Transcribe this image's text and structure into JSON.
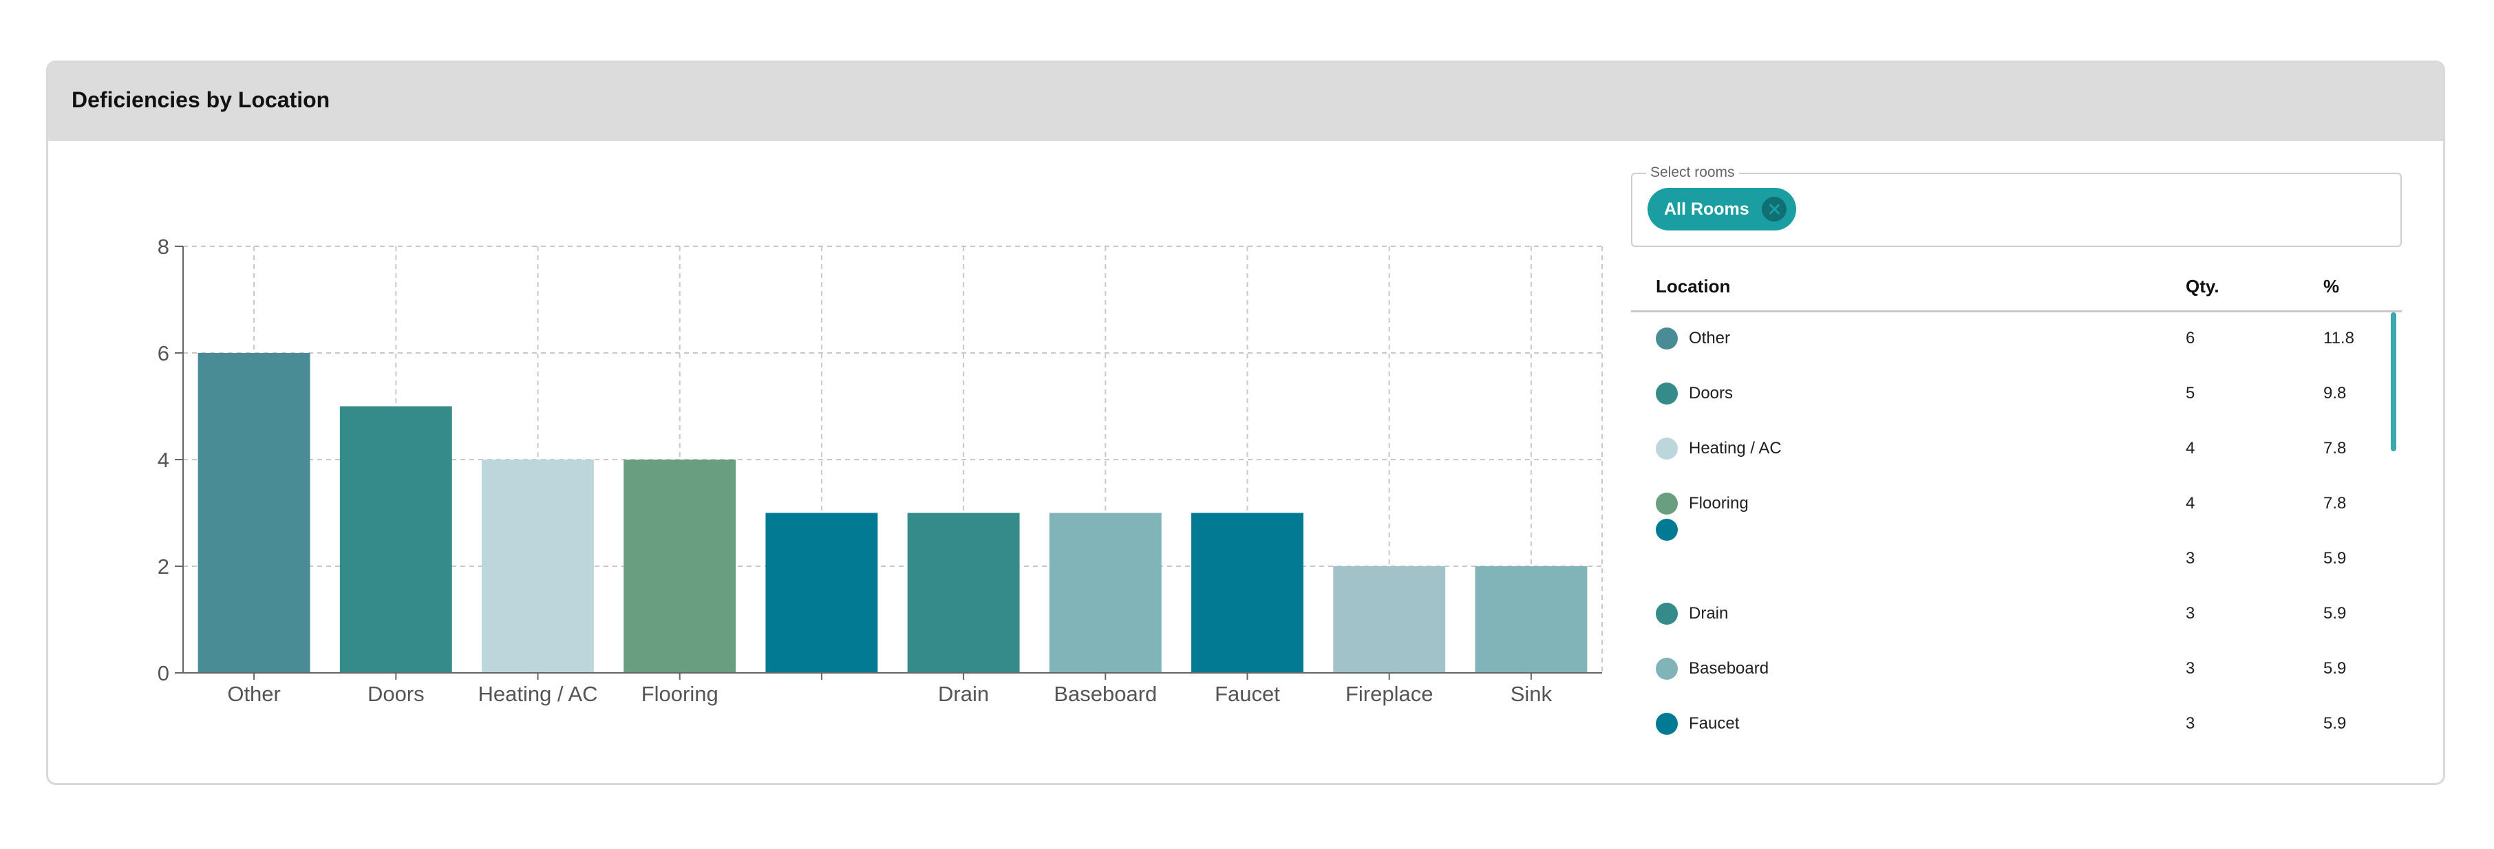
{
  "card": {
    "title": "Deficiencies by Location"
  },
  "filter": {
    "label": "Select rooms",
    "chip_label": "All Rooms"
  },
  "table": {
    "headers": {
      "location": "Location",
      "qty": "Qty.",
      "pct": "%"
    },
    "rows": [
      {
        "location": "Other",
        "qty": "6",
        "pct": "11.8",
        "color": "#4a8c96"
      },
      {
        "location": "Doors",
        "qty": "5",
        "pct": "9.8",
        "color": "#358a8a"
      },
      {
        "location": "Heating / AC",
        "qty": "4",
        "pct": "7.8",
        "color": "#bdd6db"
      },
      {
        "location": "Flooring",
        "qty": "4",
        "pct": "7.8",
        "color": "#6a9e80"
      },
      {
        "location": "",
        "qty": "3",
        "pct": "5.9",
        "color": "#037a94"
      },
      {
        "location": "Drain",
        "qty": "3",
        "pct": "5.9",
        "color": "#358a8a"
      },
      {
        "location": "Baseboard",
        "qty": "3",
        "pct": "5.9",
        "color": "#80b4b8"
      },
      {
        "location": "Faucet",
        "qty": "3",
        "pct": "5.9",
        "color": "#037a94"
      }
    ]
  },
  "chart_data": {
    "type": "bar",
    "categories": [
      "Other",
      "Doors",
      "Heating / AC",
      "Flooring",
      "",
      "Drain",
      "Baseboard",
      "Faucet",
      "Fireplace",
      "Sink"
    ],
    "values": [
      6,
      5,
      4,
      4,
      3,
      3,
      3,
      3,
      2,
      2
    ],
    "colors": [
      "#4a8c96",
      "#358a8a",
      "#bdd6db",
      "#6a9e80",
      "#037a94",
      "#358a8a",
      "#80b4b8",
      "#037a94",
      "#a0c2c8",
      "#80b4b8"
    ],
    "yticks": [
      "0",
      "2",
      "4",
      "6",
      "8"
    ],
    "ylim": [
      0,
      8
    ],
    "grid": true,
    "xlabel": "",
    "ylabel": ""
  }
}
